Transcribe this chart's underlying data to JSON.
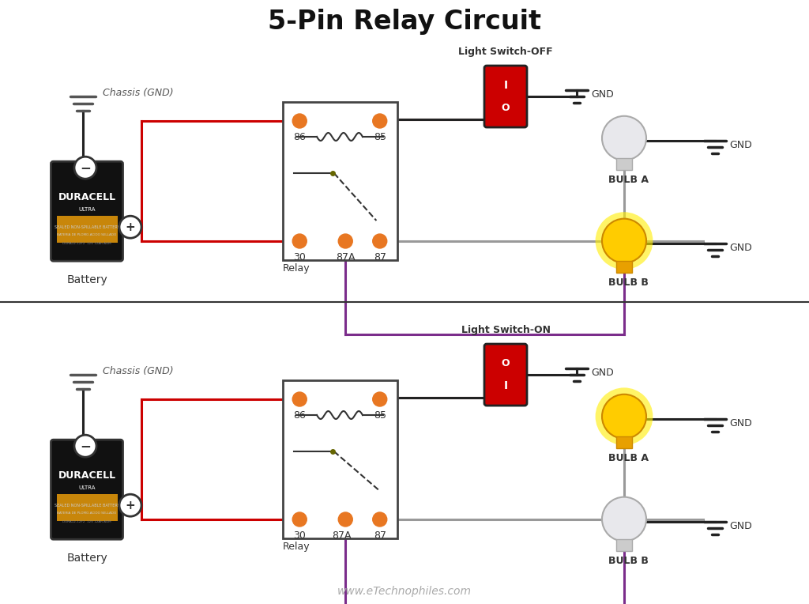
{
  "title": "5-Pin Relay Circuit",
  "background_color": "#ffffff",
  "colors": {
    "orange_pin": "#E87722",
    "wire_red": "#cc0000",
    "wire_black": "#222222",
    "wire_gray": "#999999",
    "wire_purple": "#7B2D8B",
    "relay_border": "#444444",
    "switch_red": "#cc0000",
    "switch_border": "#222222"
  },
  "panel1": {
    "switch_label": "Light Switch-OFF",
    "switch_state": "OFF",
    "bulb_a_on": false,
    "bulb_b_on": true
  },
  "panel2": {
    "switch_label": "Light Switch-ON",
    "switch_state": "ON",
    "bulb_a_on": true,
    "bulb_b_on": false
  },
  "website": "www.eTechnophiles.com"
}
